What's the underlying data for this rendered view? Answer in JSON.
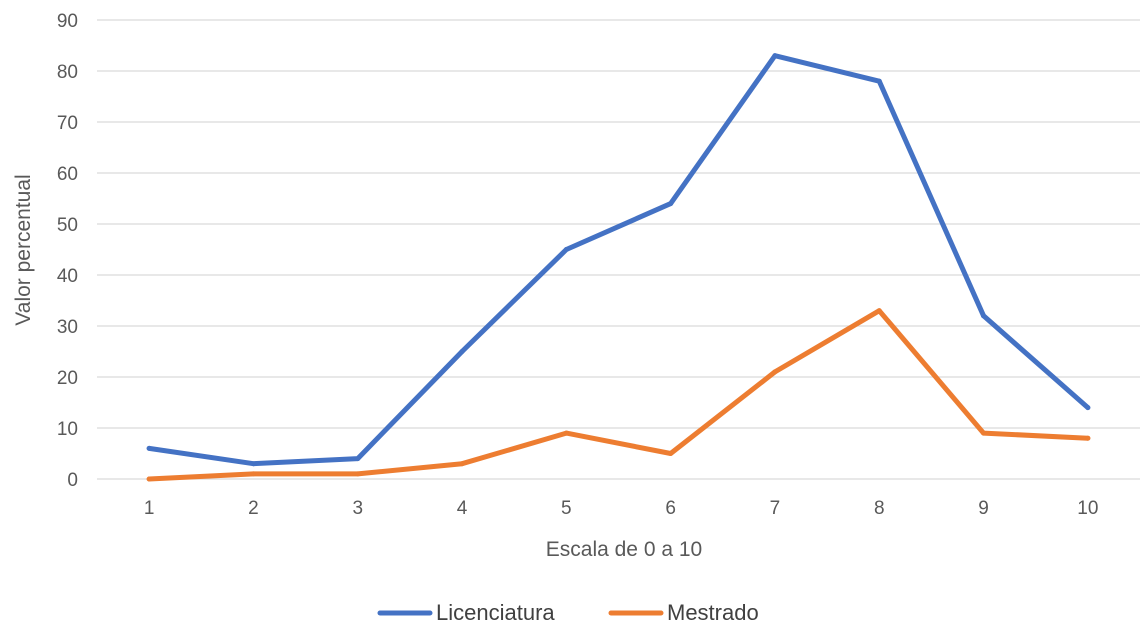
{
  "chart_data": {
    "type": "line",
    "title": "",
    "xlabel": "Escala de 0 a 10",
    "ylabel": "Valor percentual",
    "categories": [
      "1",
      "2",
      "3",
      "4",
      "5",
      "6",
      "7",
      "8",
      "9",
      "10"
    ],
    "ylim": [
      0,
      90
    ],
    "yticks": [
      0,
      10,
      20,
      30,
      40,
      50,
      60,
      70,
      80,
      90
    ],
    "grid": true,
    "legend_position": "bottom",
    "series": [
      {
        "name": "Licenciatura",
        "color": "#4472C4",
        "values": [
          6,
          3,
          4,
          25,
          45,
          54,
          83,
          78,
          32,
          14
        ]
      },
      {
        "name": "Mestrado",
        "color": "#ED7D31",
        "values": [
          0,
          1,
          1,
          3,
          9,
          5,
          21,
          33,
          9,
          8
        ]
      }
    ]
  }
}
